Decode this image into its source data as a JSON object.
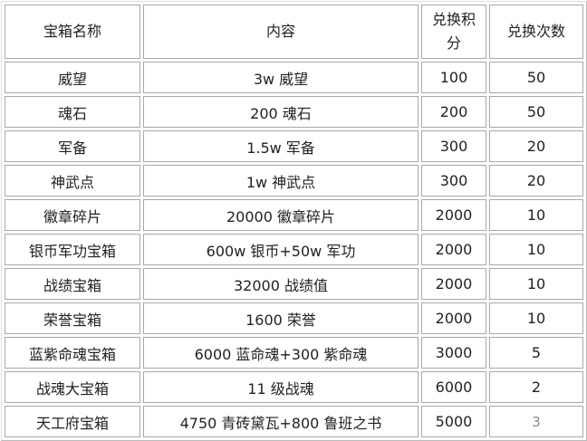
{
  "headers": [
    "宝箱名称",
    "内容",
    "兑换积分",
    "兑换次数"
  ],
  "rows": [
    [
      "威望",
      "3w 威望",
      "100",
      "50"
    ],
    [
      "魂石",
      "200 魂石",
      "200",
      "50"
    ],
    [
      "军备",
      "1.5w 军备",
      "300",
      "20"
    ],
    [
      "神武点",
      "1w 神武点",
      "300",
      "20"
    ],
    [
      "徽章碎片",
      "20000 徽章碎片",
      "2000",
      "10"
    ],
    [
      "银币军功宝箱",
      "600w 银币+50w 军功",
      "2000",
      "10"
    ],
    [
      "战绩宝箱",
      "32000 战绩值",
      "2000",
      "10"
    ],
    [
      "荣誉宝箱",
      "1600 荣誉",
      "2000",
      "10"
    ],
    [
      "蓝紫命魂宝箱",
      "6000 蓝命魂+300 紫命魂",
      "3000",
      "5"
    ],
    [
      "战魂大宝箱",
      "11 级战魂",
      "6000",
      "2"
    ],
    [
      "天工府宝箱",
      "4750 青砖黛瓦+800 鲁班之书",
      "5000",
      "3"
    ]
  ]
}
